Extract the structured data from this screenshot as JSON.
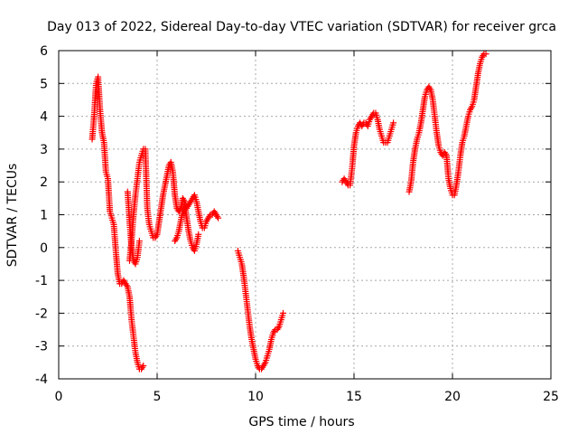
{
  "chart_data": {
    "type": "scatter",
    "title": "Day 013 of 2022, Sidereal Day-to-day VTEC variation (SDTVAR) for receiver grca",
    "xlabel": "GPS time / hours",
    "ylabel": "SDTVAR / TECUs",
    "xlim": [
      0,
      25
    ],
    "ylim": [
      -4,
      6
    ],
    "xticks": [
      0,
      5,
      10,
      15,
      20,
      25
    ],
    "xtick_labels": [
      "0",
      "5",
      "10",
      "15",
      "20",
      "25"
    ],
    "yticks": [
      -4,
      -3,
      -2,
      -1,
      0,
      1,
      2,
      3,
      4,
      5,
      6
    ],
    "ytick_labels": [
      "-4",
      "-3",
      "-2",
      "-1",
      "0",
      "1",
      "2",
      "3",
      "4",
      "5",
      "6"
    ],
    "grid": true,
    "marker": "+",
    "color": "#ff0000",
    "series": [
      {
        "name": "segment-1",
        "x": [
          1.7,
          1.8,
          1.9,
          2.0,
          2.1,
          2.2,
          2.3,
          2.4,
          2.5,
          2.6,
          2.7,
          2.8,
          2.9,
          3.0,
          3.1,
          3.2,
          3.3,
          3.4,
          3.5,
          3.6,
          3.7,
          3.8,
          3.9,
          4.0,
          4.1,
          4.2,
          4.3
        ],
        "y": [
          3.3,
          4.0,
          5.0,
          5.2,
          4.2,
          3.5,
          3.2,
          2.3,
          2.1,
          1.1,
          0.9,
          0.7,
          -0.1,
          -0.8,
          -1.1,
          -1.1,
          -1.0,
          -1.1,
          -1.2,
          -1.5,
          -2.2,
          -2.7,
          -3.2,
          -3.5,
          -3.7,
          -3.7,
          -3.6
        ]
      },
      {
        "name": "segment-2",
        "x": [
          3.6,
          3.7,
          3.8,
          3.9,
          4.0,
          4.1,
          4.2,
          4.3,
          4.4,
          4.5,
          4.6,
          4.7,
          4.8,
          4.9,
          5.0,
          5.1,
          5.2,
          5.3,
          5.4,
          5.5,
          5.6,
          5.7,
          5.8,
          5.9,
          6.0,
          6.1,
          6.2,
          6.3,
          6.4,
          6.5,
          6.6,
          6.7,
          6.8,
          6.9,
          7.0,
          7.1,
          7.2,
          7.3,
          7.4,
          7.5,
          7.6,
          7.7,
          7.8,
          7.9,
          8.0,
          8.1
        ],
        "y": [
          -0.4,
          0.2,
          1.0,
          1.6,
          2.1,
          2.6,
          2.8,
          3.0,
          3.0,
          1.2,
          0.7,
          0.5,
          0.3,
          0.3,
          0.4,
          0.8,
          1.2,
          1.6,
          1.9,
          2.2,
          2.5,
          2.6,
          2.3,
          1.6,
          1.2,
          1.1,
          1.2,
          1.5,
          1.4,
          1.2,
          1.3,
          1.4,
          1.5,
          1.6,
          1.4,
          1.1,
          0.8,
          0.6,
          0.6,
          0.8,
          0.9,
          1.0,
          1.0,
          1.1,
          1.0,
          0.9
        ]
      },
      {
        "name": "segment-3",
        "x": [
          3.5,
          3.6,
          3.7,
          3.8,
          3.9,
          4.0,
          4.1
        ],
        "y": [
          1.7,
          0.8,
          0.0,
          -0.4,
          -0.5,
          -0.3,
          0.2
        ]
      },
      {
        "name": "segment-4",
        "x": [
          5.9,
          6.0,
          6.1,
          6.2,
          6.3,
          6.4,
          6.5,
          6.6,
          6.7,
          6.8,
          6.9,
          7.0,
          7.1
        ],
        "y": [
          0.2,
          0.3,
          0.5,
          0.8,
          1.1,
          1.3,
          0.9,
          0.5,
          0.2,
          0.0,
          -0.1,
          0.1,
          0.4
        ]
      },
      {
        "name": "segment-5",
        "x": [
          9.1,
          9.2,
          9.3,
          9.4,
          9.5,
          9.6,
          9.7,
          9.8,
          9.9,
          10.0,
          10.1,
          10.2,
          10.3,
          10.4,
          10.5,
          10.6,
          10.7,
          10.8,
          10.9,
          11.0,
          11.1,
          11.2,
          11.3,
          11.4
        ],
        "y": [
          -0.1,
          -0.3,
          -0.5,
          -0.9,
          -1.4,
          -1.9,
          -2.4,
          -2.8,
          -3.1,
          -3.4,
          -3.6,
          -3.7,
          -3.7,
          -3.6,
          -3.5,
          -3.3,
          -3.1,
          -2.8,
          -2.6,
          -2.5,
          -2.5,
          -2.4,
          -2.2,
          -2.0
        ]
      },
      {
        "name": "segment-6",
        "x": [
          14.4,
          14.5,
          14.6,
          14.7,
          14.8,
          14.9,
          15.0,
          15.1,
          15.2,
          15.3,
          15.4,
          15.5,
          15.6,
          15.7,
          15.8,
          15.9,
          16.0,
          16.1,
          16.2,
          16.3,
          16.4,
          16.5,
          16.6,
          16.7,
          16.8,
          16.9,
          17.0
        ],
        "y": [
          2.0,
          2.1,
          2.0,
          1.9,
          1.9,
          2.4,
          3.1,
          3.5,
          3.7,
          3.8,
          3.7,
          3.8,
          3.8,
          3.7,
          3.9,
          4.0,
          4.1,
          4.1,
          3.9,
          3.6,
          3.4,
          3.2,
          3.2,
          3.2,
          3.4,
          3.6,
          3.8
        ]
      },
      {
        "name": "segment-7",
        "x": [
          17.8,
          17.9,
          18.0,
          18.1,
          18.2,
          18.3,
          18.4,
          18.5,
          18.6,
          18.7,
          18.8,
          18.9,
          19.0,
          19.1,
          19.2,
          19.3,
          19.4,
          19.5,
          19.6,
          19.7,
          19.8,
          19.9,
          20.0,
          20.1,
          20.2,
          20.3,
          20.4,
          20.5,
          20.6,
          20.7,
          20.8,
          20.9,
          21.0,
          21.1,
          21.2,
          21.3,
          21.4,
          21.5,
          21.6,
          21.7
        ],
        "y": [
          1.7,
          2.0,
          2.6,
          3.0,
          3.3,
          3.5,
          3.8,
          4.2,
          4.6,
          4.8,
          4.9,
          4.8,
          4.5,
          4.0,
          3.5,
          3.1,
          2.9,
          2.8,
          2.9,
          2.8,
          2.1,
          1.8,
          1.6,
          1.6,
          1.9,
          2.3,
          2.8,
          3.2,
          3.4,
          3.7,
          4.0,
          4.2,
          4.3,
          4.5,
          4.9,
          5.3,
          5.6,
          5.8,
          5.9,
          5.9
        ]
      }
    ]
  }
}
